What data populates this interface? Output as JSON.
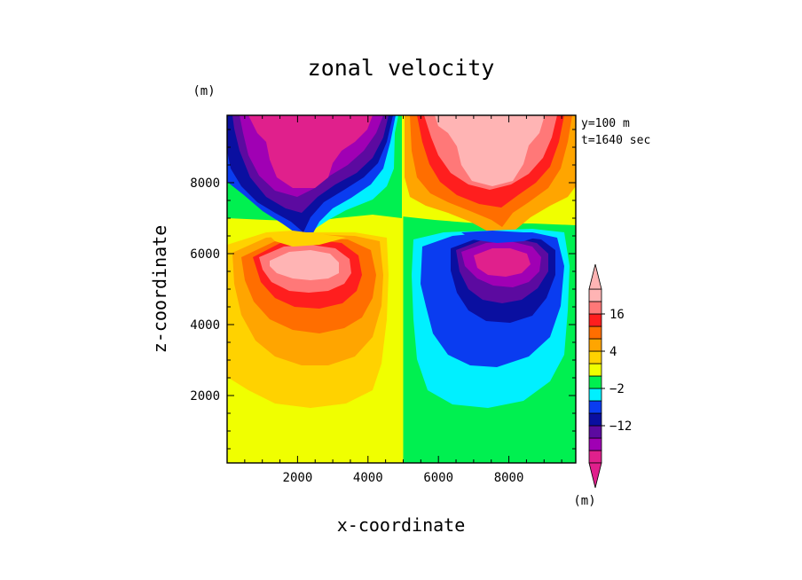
{
  "chart_data": {
    "type": "heatmap",
    "subtype": "filled-contour",
    "title": "zonal velocity",
    "xlabel": "x-coordinate",
    "ylabel": "z-coordinate",
    "x_unit": "(m)",
    "y_unit": "(m)",
    "annotations": [
      "y=100 m",
      "t=1640 sec"
    ],
    "xlim": [
      0,
      9900
    ],
    "ylim": [
      100,
      9900
    ],
    "xticks": [
      2000,
      4000,
      6000,
      8000
    ],
    "yticks": [
      2000,
      4000,
      6000,
      8000
    ],
    "xtick_labels": [
      "2000",
      "4000",
      "6000",
      "8000"
    ],
    "ytick_labels": [
      "2000",
      "4000",
      "6000",
      "8000"
    ],
    "colorbar": {
      "unit": "(m)",
      "labels": [
        {
          "text": "16",
          "value": 16
        },
        {
          "text": "4",
          "value": 4
        },
        {
          "text": "−2",
          "value": -2
        },
        {
          "text": "−12",
          "value": -12
        }
      ],
      "colors": [
        "#E0208C",
        "#A000B4",
        "#5C0AA0",
        "#0A0FA0",
        "#0A3CF0",
        "#00F0FF",
        "#00F050",
        "#F0FF00",
        "#FFD200",
        "#FFA500",
        "#FF6E00",
        "#FF1E1E",
        "#FF7878",
        "#FFB4B4"
      ],
      "extend": "both"
    },
    "color_levels": [
      "#E0208C",
      "#A000B4",
      "#5C0AA0",
      "#0A0FA0",
      "#0A3CF0",
      "#00F0FF",
      "#00F050",
      "#F0FF00",
      "#FFD200",
      "#FFA500",
      "#FF6E00",
      "#FF1E1E",
      "#FF7878",
      "#FFB4B4"
    ],
    "features": [
      {
        "kind": "background",
        "x_range": [
          0,
          5000
        ],
        "color_index": 7
      },
      {
        "kind": "background",
        "x_range": [
          5000,
          9900
        ],
        "color_index": 6
      },
      {
        "kind": "upper-left-jet",
        "center": [
          2200,
          9900
        ],
        "peak_color_index": 0
      },
      {
        "kind": "upper-right-jet",
        "center": [
          7400,
          9900
        ],
        "peak_color_index": 13
      },
      {
        "kind": "lower-left-vortex",
        "center": [
          2000,
          5800
        ],
        "peak_color_index": 13
      },
      {
        "kind": "lower-right-vortex",
        "center": [
          7700,
          5800
        ],
        "peak_color_index": 0
      }
    ]
  }
}
